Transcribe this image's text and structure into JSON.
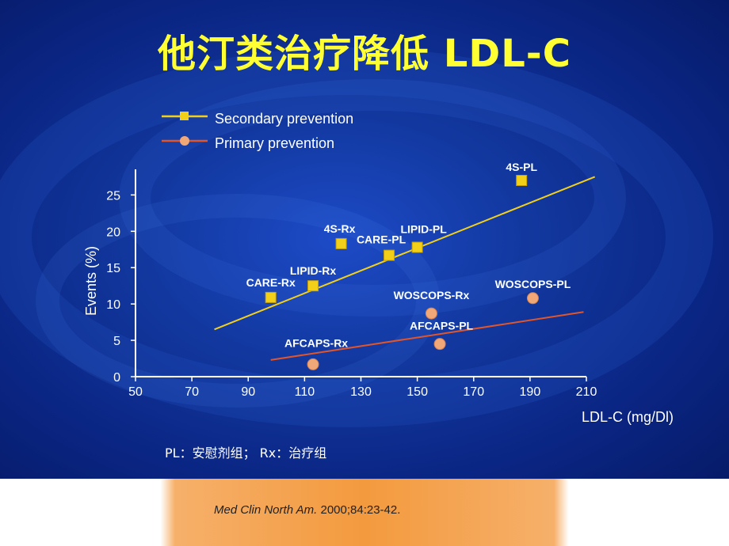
{
  "slide": {
    "title": "他汀类治疗降低 LDL-C",
    "footnote": "PL：安慰剂组； Rx：治疗组",
    "citation_journal": "Med Clin North Am.",
    "citation_detail": " 2000;84:23-42."
  },
  "colors": {
    "background": "#0b2a8f",
    "title": "#ffff33",
    "secondary": "#f2d01a",
    "primary": "#e0552a",
    "marker_primary": "#f0a878",
    "bottom_band": "#f5a04b"
  },
  "chart_data": {
    "type": "scatter",
    "title": "",
    "xlabel": "LDL-C (mg/Dl)",
    "ylabel": "Events (%)",
    "xlim": [
      50,
      210
    ],
    "ylim": [
      0,
      27
    ],
    "xticks": [
      50,
      70,
      90,
      110,
      130,
      150,
      170,
      190,
      210
    ],
    "yticks": [
      0,
      5,
      10,
      15,
      20,
      25
    ],
    "legend_position": "top-left",
    "series": [
      {
        "name": "Secondary prevention",
        "marker": "square",
        "points": [
          {
            "label": "4S-PL",
            "x": 187,
            "y": 27
          },
          {
            "label": "4S-Rx",
            "x": 123,
            "y": 18.3
          },
          {
            "label": "LIPID-PL",
            "x": 150,
            "y": 17.8
          },
          {
            "label": "CARE-PL",
            "x": 140,
            "y": 16.7
          },
          {
            "label": "LIPID-Rx",
            "x": 113,
            "y": 12.5
          },
          {
            "label": "CARE-Rx",
            "x": 98,
            "y": 10.9
          }
        ],
        "trend": {
          "x": [
            78,
            213
          ],
          "y": [
            6.5,
            27.5
          ]
        }
      },
      {
        "name": "Primary prevention",
        "marker": "circle",
        "points": [
          {
            "label": "WOSCOPS-PL",
            "x": 191,
            "y": 10.8
          },
          {
            "label": "WOSCOPS-Rx",
            "x": 155,
            "y": 8.7
          },
          {
            "label": "AFCAPS-PL",
            "x": 158,
            "y": 4.5
          },
          {
            "label": "AFCAPS-Rx",
            "x": 113,
            "y": 1.7
          }
        ],
        "trend": {
          "x": [
            98,
            209
          ],
          "y": [
            2.3,
            8.9
          ]
        }
      }
    ]
  }
}
